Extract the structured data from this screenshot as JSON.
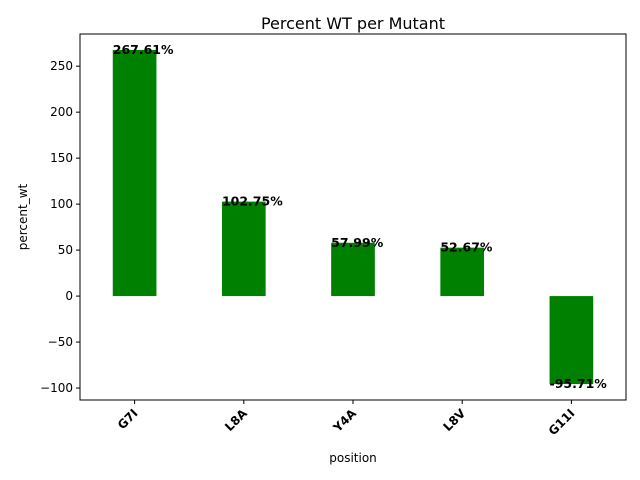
{
  "chart_data": {
    "type": "bar",
    "title": "Percent WT per Mutant",
    "xlabel": "position",
    "ylabel": "percent_wt",
    "categories": [
      "G7I",
      "L8A",
      "Y4A",
      "L8V",
      "G11I"
    ],
    "values": [
      267.61,
      102.75,
      57.99,
      52.67,
      -95.71
    ],
    "data_labels": [
      "267.61%",
      "102.75%",
      "57.99%",
      "52.67%",
      "-95.71%"
    ],
    "ylim": [
      -113.0,
      285.0
    ],
    "yticks": [
      -100,
      -50,
      0,
      50,
      100,
      150,
      200,
      250
    ],
    "ytick_labels": [
      "−100",
      "−50",
      "0",
      "50",
      "100",
      "150",
      "200",
      "250"
    ],
    "bar_color": "#008000",
    "grid": false,
    "legend": "none",
    "xtick_rotation": 45
  }
}
